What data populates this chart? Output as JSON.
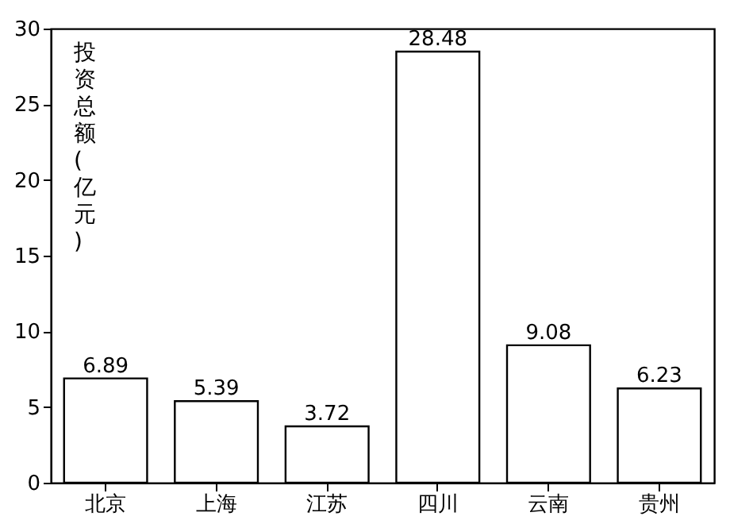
{
  "chart_data": {
    "type": "bar",
    "ylabel": "投资总额(亿元)",
    "categories": [
      "北京",
      "上海",
      "江苏",
      "四川",
      "云南",
      "贵州"
    ],
    "values": [
      6.89,
      5.39,
      3.72,
      28.48,
      9.08,
      6.23
    ],
    "color": "#ffffff",
    "ylim": [
      0,
      30
    ],
    "yticks": [
      0,
      5,
      10,
      15,
      20,
      25,
      30
    ],
    "data_labels": true
  }
}
